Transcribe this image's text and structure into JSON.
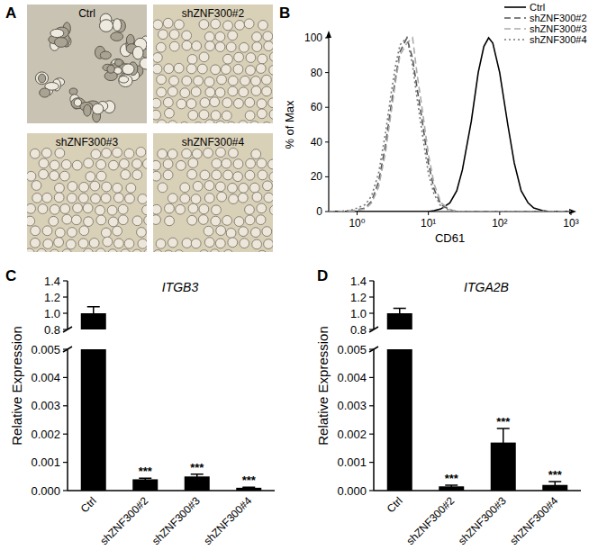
{
  "panel_labels": [
    "A",
    "B",
    "C",
    "D"
  ],
  "image_panel": {
    "labels": [
      "Ctrl",
      "shZNF300#2",
      "shZNF300#3",
      "shZNF300#4"
    ]
  },
  "chart_data": [
    {
      "type": "line",
      "xlabel": "CD61",
      "ylabel": "% of Max",
      "log": "x",
      "legend": "top-right",
      "x": [
        0.4,
        0.6,
        0.8,
        1,
        1.3,
        1.6,
        2,
        2.5,
        3,
        3.5,
        4,
        5,
        6,
        7,
        8,
        10,
        12,
        15,
        20,
        25,
        30,
        40,
        50,
        60,
        70,
        80,
        100,
        130,
        160,
        200,
        250,
        300,
        400,
        500,
        700,
        1000
      ],
      "xlim": [
        0.4,
        1000
      ],
      "xticks": [
        {
          "value": 1,
          "label": "10⁰"
        },
        {
          "value": 10,
          "label": "10¹"
        },
        {
          "value": 100,
          "label": "10²"
        },
        {
          "value": 1000,
          "label": "10³"
        }
      ],
      "ylim": [
        0,
        100
      ],
      "yticks": [
        0,
        20,
        40,
        60,
        80,
        100
      ],
      "series": [
        {
          "name": "Ctrl",
          "color": "#000000",
          "line_style": "solid",
          "values": [
            0,
            0,
            0,
            0,
            0,
            0,
            0,
            0,
            0,
            0,
            0,
            0,
            0,
            0,
            0,
            0,
            0.5,
            1.5,
            5,
            12,
            24,
            52,
            80,
            95,
            100,
            97,
            80,
            50,
            28,
            12,
            5,
            2,
            0.5,
            0,
            0,
            0
          ]
        },
        {
          "name": "shZNF300#2",
          "color": "#555555",
          "line_style": "dashed",
          "values": [
            0,
            0,
            0.3,
            1,
            2,
            6,
            17,
            38,
            61,
            78,
            92,
            100,
            88,
            70,
            55,
            28,
            13,
            4,
            1,
            0,
            0,
            0,
            0,
            0,
            0,
            0,
            0,
            0,
            0,
            0,
            0,
            0,
            0,
            0,
            0,
            0
          ]
        },
        {
          "name": "shZNF300#3",
          "color": "#aaaaaa",
          "line_style": "dashed",
          "values": [
            0,
            0,
            0.2,
            0.8,
            1.5,
            5,
            14,
            34,
            57,
            76,
            90,
            97,
            100,
            78,
            62,
            33,
            16,
            5,
            1.2,
            0,
            0,
            0,
            0,
            0,
            0,
            0,
            0,
            0,
            0,
            0,
            0,
            0,
            0,
            0,
            0,
            0
          ]
        },
        {
          "name": "shZNF300#4",
          "color": "#777777",
          "line_style": "dotted",
          "values": [
            0,
            0.2,
            0.6,
            2,
            4,
            9,
            22,
            45,
            68,
            85,
            96,
            100,
            84,
            64,
            48,
            22,
            10,
            3,
            0.6,
            0,
            0,
            0,
            0,
            0,
            0,
            0,
            0,
            0,
            0,
            0,
            0,
            0,
            0,
            0,
            0,
            0
          ]
        }
      ]
    },
    {
      "type": "bar",
      "title": "ITGB3",
      "ylabel": "Relative Expression",
      "categories": [
        "Ctrl",
        "shZNF300#2",
        "shZNF300#3",
        "shZNF300#4"
      ],
      "values": [
        1.0,
        0.0004,
        0.0005,
        0.0001
      ],
      "errors": [
        0.08,
        4e-05,
        8e-05,
        2e-05
      ],
      "significance": [
        null,
        "***",
        "***",
        "***"
      ],
      "color": "#000000",
      "ylim": [
        0,
        1.4
      ],
      "axis_break": [
        0.005,
        0.8
      ],
      "yticks": [
        {
          "value": 0,
          "label": "0.000"
        },
        0.001,
        0.002,
        0.003,
        0.004,
        0.005,
        0.8,
        {
          "value": 1,
          "label": "1.0"
        },
        1.2,
        1.4
      ]
    },
    {
      "type": "bar",
      "title": "ITGA2B",
      "ylabel": "Relative Expression",
      "categories": [
        "Ctrl",
        "shZNF300#2",
        "shZNF300#3",
        "shZNF300#4"
      ],
      "values": [
        1.0,
        0.00015,
        0.0017,
        0.0002
      ],
      "errors": [
        0.06,
        4e-05,
        0.0005,
        0.00012
      ],
      "significance": [
        null,
        "***",
        "***",
        "***"
      ],
      "color": "#000000",
      "ylim": [
        0,
        1.4
      ],
      "axis_break": [
        0.005,
        0.8
      ],
      "yticks": [
        {
          "value": 0,
          "label": "0.000"
        },
        0.001,
        0.002,
        0.003,
        0.004,
        0.005,
        0.8,
        {
          "value": 1,
          "label": "1.0"
        },
        1.2,
        1.4
      ]
    }
  ]
}
